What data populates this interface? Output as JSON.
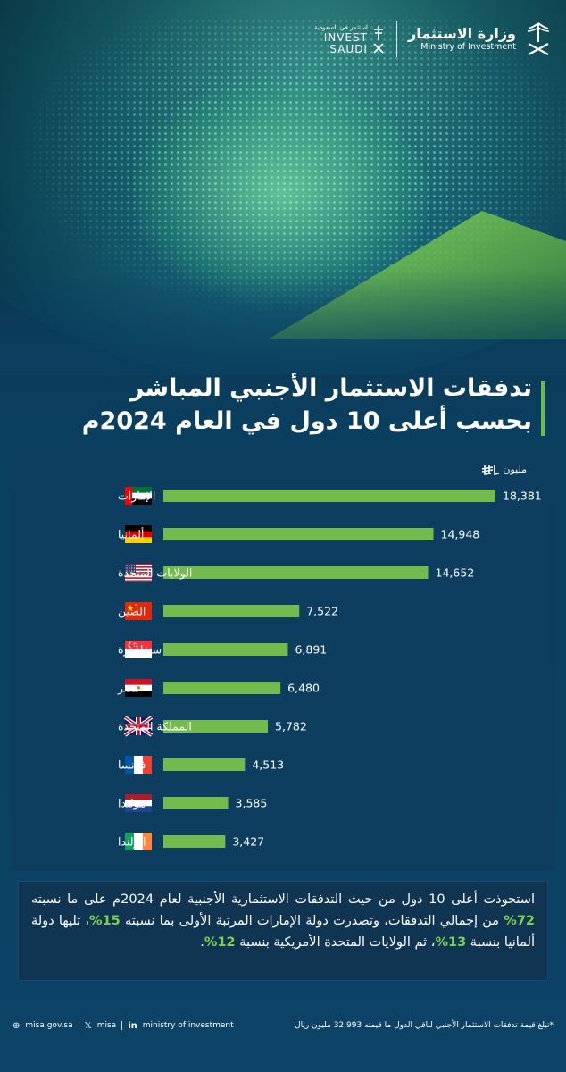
{
  "header": {
    "ministry_ar": "وزارة الاستثمار",
    "ministry_en": "Ministry of Investment",
    "invest_ar": "استثمر في السعودية",
    "invest_en_1": "INVEST",
    "invest_en_2": "SAUDI"
  },
  "title_line1": "تدفقات الاستثمار الأجنبي المباشر",
  "title_line2": "بحسب أعلى 10 دول في العام 2024م",
  "unit": "مليون",
  "chart_data": {
    "type": "bar",
    "orientation": "horizontal",
    "categories": [
      "الإمارات",
      "ألمانيا",
      "الولايات المتحدة",
      "الصين",
      "سنغافورة",
      "مصر",
      "المملكة المتحدة",
      "فرنسا",
      "هولندا",
      "ايرلندا"
    ],
    "values": [
      18381,
      14948,
      14652,
      7522,
      6891,
      6480,
      5782,
      4513,
      3585,
      3427
    ],
    "value_labels": [
      "18,381",
      "14,948",
      "14,652",
      "7,522",
      "6,891",
      "6,480",
      "5,782",
      "4,513",
      "3,585",
      "3,427"
    ],
    "flags": [
      "uae-flag",
      "germany-flag",
      "usa-flag",
      "china-flag",
      "singapore-flag",
      "egypt-flag",
      "uk-flag",
      "france-flag",
      "netherlands-flag",
      "ireland-flag"
    ],
    "bar_color": "#72bb4c",
    "xlim": [
      0,
      18381
    ]
  },
  "summary": {
    "p1": "استحوذت أعلى 10 دول من حيث التدفقات الاستثمارية الأجنبية لعام 2024م على ما نسبته ",
    "pct1": "72%",
    "p2": " من إجمالي التدفقات، وتصدرت دولة الإمارات المرتبة الأولى بما نسبته ",
    "pct2": "15%",
    "p3": "، تليها دولة ألمانيا بنسبة ",
    "pct3": "13%",
    "p4": "، ثم الولايات المتحدة الأمريكية بنسبة ",
    "pct4": "12%",
    "p5": "."
  },
  "footer": {
    "site": "misa.gov.sa",
    "x_handle": "misa",
    "linkedin": "ministry of investment",
    "note": "*تبلغ قيمة تدفقات الاستثمار الأجنبي لباقي الدول ما قيمته 32,993 مليون ريال"
  },
  "colors": {
    "accent": "#6cbd45",
    "background": "#0c4366"
  }
}
